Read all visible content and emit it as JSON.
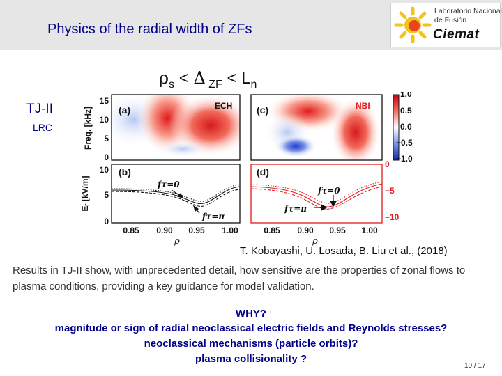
{
  "header": {
    "title": "Physics of the radial width of ZFs",
    "logo": {
      "line1": "Laboratorio Nacional",
      "line2": "de Fusión",
      "brand": "Ciemat",
      "sun_color": "#f5c21b",
      "sun_core_color": "#e8451e"
    }
  },
  "formula": {
    "rho": "ρ",
    "s": "s",
    "lt1": " < ",
    "delta": "Δ",
    "zf": " ZF",
    "lt2": " < L",
    "n": "n"
  },
  "device_label": "TJ-II",
  "device_sublabel": "LRC",
  "figure": {
    "colorbar_ticks": [
      "1.0",
      "0.5",
      "0.0",
      "−0.5",
      "−1.0"
    ],
    "top": {
      "ylabel": "Freq. [kHz]",
      "yticks": [
        "15",
        "10",
        "5",
        "0"
      ],
      "panel_a": {
        "label": "(a)",
        "tag": "ECH"
      },
      "panel_c": {
        "label": "(c)",
        "tag": "NBI"
      }
    },
    "bottom": {
      "ylabel": "Eᵣ [kV/m]",
      "yticks_left": [
        "10",
        "5",
        "0"
      ],
      "yticks_right": [
        "0",
        "−5",
        "−10"
      ],
      "panel_b": {
        "label": "(b)",
        "ann1": "fτ=0",
        "ann2": "fτ=π"
      },
      "panel_d": {
        "label": "(d)",
        "ann1": "fτ=0",
        "ann2": "fτ=π"
      }
    },
    "xticks": [
      "0.85",
      "0.90",
      "0.95",
      "1.00"
    ],
    "xlabel": "ρ",
    "colors": {
      "red": "#e31a1c",
      "blue": "#1f3fd0",
      "black": "#111111"
    }
  },
  "citation": "T. Kobayashi, U. Losada, B. Liu et al., (2018)",
  "body": "Results in TJ-II show, with unprecedented detail, how sensitive are the properties of zonal flows to plasma conditions, providing a key guidance for model validation.",
  "questions": [
    "WHY?",
    "magnitude or sign of radial neoclassical electric fields and Reynolds stresses?",
    "neoclassical mechanisms (particle orbits)?",
    "plasma collisionality ?"
  ],
  "page_number": "10 / 17"
}
